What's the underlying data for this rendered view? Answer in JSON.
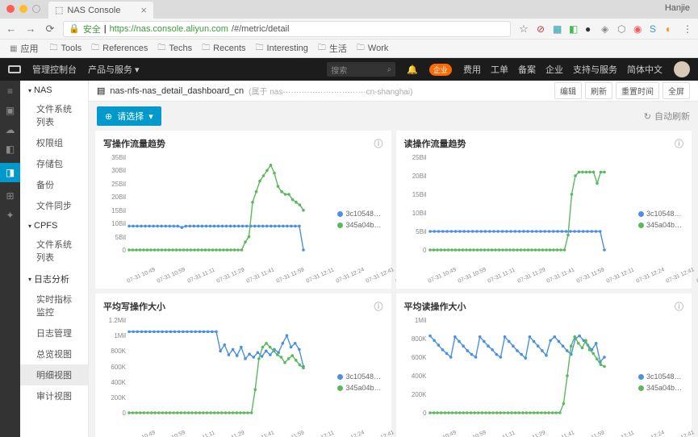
{
  "browser": {
    "tab_title": "NAS Console",
    "user": "Hanjie",
    "secure_label": "安全",
    "url_host": "https://nas.console.aliyun.com",
    "url_path": "/#/metric/detail",
    "apps_label": "应用",
    "bookmarks": [
      "Tools",
      "References",
      "Techs",
      "Recents",
      "Interesting",
      "生活",
      "Work"
    ]
  },
  "header": {
    "left1": "管理控制台",
    "left2": "产品与服务",
    "search_placeholder": "搜索",
    "badge": "企业",
    "links": [
      "费用",
      "工单",
      "备案",
      "企业",
      "支持与服务",
      "简体中文"
    ]
  },
  "sidebar": {
    "groups": [
      {
        "label": "NAS",
        "items": [
          "文件系统列表",
          "权限组",
          "存储包",
          "备份",
          "文件同步"
        ]
      },
      {
        "label": "CPFS",
        "items": [
          "文件系统列表"
        ]
      },
      {
        "label": "日志分析",
        "items": [
          "实时指标监控",
          "日志管理",
          "总览视图",
          "明细视图",
          "审计视图"
        ]
      }
    ],
    "selected": "明细视图"
  },
  "crumb": {
    "icon_title": "nas-nfs-nas_detail_dashboard_cn",
    "owner": "(属于 nas-······························cn-shanghai)",
    "buttons": [
      "编辑",
      "刷新",
      "重置时间",
      "全屏"
    ]
  },
  "toolbar": {
    "select": "请选择",
    "tri": "▾",
    "refresh": "自动刷新"
  },
  "palette": {
    "blue": "#4a90e2",
    "green": "#5cb85c",
    "grid": "#e6e6e6",
    "text": "#888"
  },
  "legend": {
    "a": "3c10548…",
    "b": "345a04b…"
  },
  "charts": [
    {
      "title": "写操作流量趋势",
      "y_ticks": [
        "35Bil",
        "30Bil",
        "25Bil",
        "20Bil",
        "15Bil",
        "10Bil",
        "5Bil",
        "0"
      ],
      "x_ticks": [
        "07-31 10:49",
        "07-31 10:59",
        "07-31 11:11",
        "07-31 11:29",
        "07-31 11:41",
        "07-31 11:59",
        "07-31 12:11",
        "07-31 12:24",
        "07-31 12:41",
        "07-31 12:59",
        "07-31 13:04",
        "07-31 15:19",
        "07-31 16:24"
      ],
      "blue": [
        9,
        9,
        9,
        9,
        9,
        9,
        9,
        9,
        9,
        9,
        9,
        9,
        9,
        8.5,
        9,
        9,
        9,
        9,
        9,
        9,
        9,
        9,
        9,
        9,
        9,
        9,
        9,
        9,
        9,
        9,
        9,
        9,
        9,
        9,
        9,
        9,
        9,
        9,
        9,
        9,
        9,
        9,
        9,
        0
      ],
      "green": [
        0,
        0,
        0,
        0,
        0,
        0,
        0,
        0,
        0,
        0,
        0,
        0,
        0,
        0,
        0,
        0,
        0,
        0,
        0,
        0,
        0,
        0,
        0,
        0,
        0,
        0,
        0,
        0,
        0,
        0,
        0,
        0,
        3,
        5,
        18,
        22,
        26,
        28,
        30,
        32,
        29,
        24,
        22,
        21,
        21,
        19,
        18,
        17,
        15
      ]
    },
    {
      "title": "读操作流量趋势",
      "y_ticks": [
        "25Bil",
        "20Bil",
        "15Bil",
        "10Bil",
        "5Bil",
        "0"
      ],
      "x_ticks": [
        "07-31 10:49",
        "07-31 10:59",
        "07-31 11:11",
        "07-31 11:29",
        "07-31 11:41",
        "07-31 11:59",
        "07-31 12:11",
        "07-31 12:24",
        "07-31 12:41",
        "07-31 12:59",
        "07-31 13:04",
        "07-31 15:19",
        "07-31 16:24"
      ],
      "blue": [
        5,
        5,
        5,
        5,
        5,
        5,
        5,
        5,
        5,
        5,
        5,
        5,
        5,
        5,
        5,
        5,
        5,
        5,
        5,
        5,
        5,
        5,
        5,
        5,
        5,
        5,
        5,
        5,
        5,
        5,
        5,
        5,
        5,
        5,
        5,
        5,
        5,
        5,
        5,
        5,
        5,
        0
      ],
      "green": [
        0,
        0,
        0,
        0,
        0,
        0,
        0,
        0,
        0,
        0,
        0,
        0,
        0,
        0,
        0,
        0,
        0,
        0,
        0,
        0,
        0,
        0,
        0,
        0,
        0,
        0,
        0,
        0,
        0,
        0,
        0,
        0,
        0,
        0,
        0,
        0,
        0,
        0,
        4,
        15,
        20,
        21,
        21,
        21,
        21,
        21,
        18,
        21,
        21
      ]
    },
    {
      "title": "平均写操作大小",
      "y_ticks": [
        "1.2Mil",
        "1Mil",
        "800K",
        "600K",
        "400K",
        "200K",
        "0"
      ],
      "x_ticks": [
        "07-31 10:49",
        "07-31 10:59",
        "07-31 11:11",
        "07-31 11:29",
        "07-31 11:41",
        "07-31 11:59",
        "07-31 12:11",
        "07-31 12:24",
        "07-31 12:41",
        "07-31 12:59",
        "07-31 13:04",
        "07-31 15:19",
        "07-31 16:24"
      ],
      "blue": [
        1.05,
        1.05,
        1.05,
        1.05,
        1.05,
        1.05,
        1.05,
        1.05,
        1.05,
        1.05,
        1.05,
        1.05,
        1.05,
        1.05,
        1.05,
        1.05,
        1.05,
        1.05,
        1.05,
        1.05,
        1.05,
        1.05,
        0.8,
        0.88,
        0.75,
        0.82,
        0.74,
        0.85,
        0.7,
        0.76,
        0.72,
        0.78,
        0.73,
        0.8,
        0.75,
        0.82,
        0.78,
        0.9,
        1.0,
        0.85,
        0.9,
        0.82,
        0.6
      ],
      "green": [
        0,
        0,
        0,
        0,
        0,
        0,
        0,
        0,
        0,
        0,
        0,
        0,
        0,
        0,
        0,
        0,
        0,
        0,
        0,
        0,
        0,
        0,
        0,
        0,
        0,
        0,
        0,
        0,
        0,
        0,
        0,
        0,
        0,
        0,
        0.3,
        0.7,
        0.85,
        0.9,
        0.85,
        0.8,
        0.75,
        0.72,
        0.65,
        0.7,
        0.74,
        0.68,
        0.62,
        0.58
      ]
    },
    {
      "title": "平均读操作大小",
      "y_ticks": [
        "1Mil",
        "800K",
        "600K",
        "400K",
        "200K",
        "0"
      ],
      "x_ticks": [
        "07-31 10:49",
        "07-31 10:59",
        "07-31 11:11",
        "07-31 11:29",
        "07-31 11:41",
        "07-31 11:59",
        "07-31 12:11",
        "07-31 12:24",
        "07-31 12:41",
        "07-31 12:59",
        "07-31 13:04",
        "07-31 15:19",
        "07-31 16:24"
      ],
      "blue": [
        0.83,
        0.78,
        0.73,
        0.68,
        0.64,
        0.6,
        0.82,
        0.77,
        0.72,
        0.67,
        0.63,
        0.6,
        0.82,
        0.77,
        0.72,
        0.68,
        0.63,
        0.6,
        0.82,
        0.77,
        0.72,
        0.67,
        0.63,
        0.59,
        0.82,
        0.77,
        0.72,
        0.67,
        0.62,
        0.78,
        0.82,
        0.77,
        0.72,
        0.67,
        0.63,
        0.8,
        0.83,
        0.78,
        0.73,
        0.68,
        0.75,
        0.55,
        0.6
      ],
      "green": [
        0,
        0,
        0,
        0,
        0,
        0,
        0,
        0,
        0,
        0,
        0,
        0,
        0,
        0,
        0,
        0,
        0,
        0,
        0,
        0,
        0,
        0,
        0,
        0,
        0,
        0,
        0,
        0,
        0,
        0,
        0,
        0,
        0,
        0,
        0,
        0,
        0.1,
        0.4,
        0.72,
        0.82,
        0.75,
        0.7,
        0.78,
        0.68,
        0.64,
        0.58,
        0.52,
        0.5
      ]
    }
  ]
}
